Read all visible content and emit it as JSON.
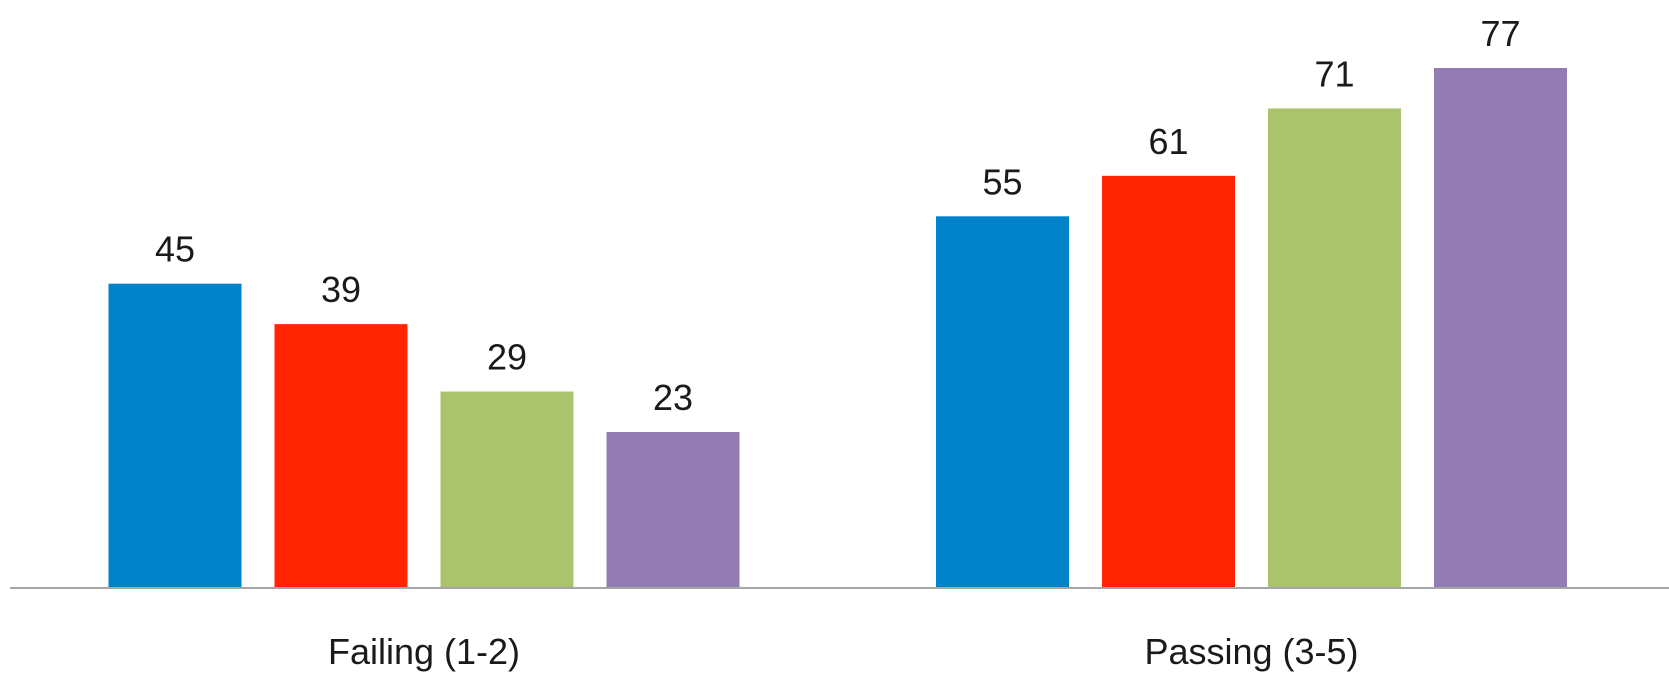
{
  "chart_data": {
    "type": "bar",
    "categories": [
      "Failing (1-2)",
      "Passing (3-5)"
    ],
    "series": [
      {
        "color": "#0082ca",
        "values": [
          45,
          55
        ]
      },
      {
        "color": "#ff2500",
        "values": [
          39,
          61
        ]
      },
      {
        "color": "#a9c46c",
        "values": [
          29,
          71
        ]
      },
      {
        "color": "#927cb1",
        "values": [
          23,
          77
        ]
      }
    ]
  }
}
